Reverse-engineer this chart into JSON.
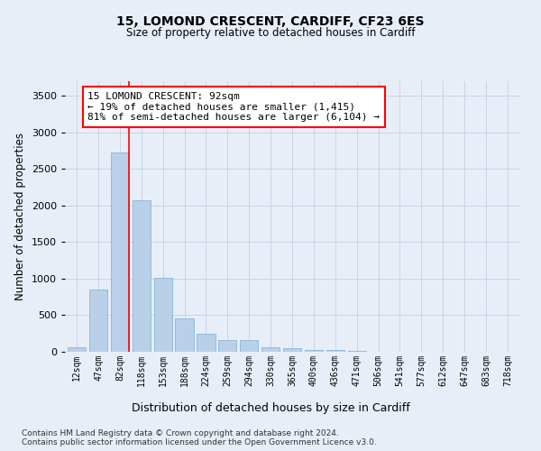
{
  "title1": "15, LOMOND CRESCENT, CARDIFF, CF23 6ES",
  "title2": "Size of property relative to detached houses in Cardiff",
  "xlabel": "Distribution of detached houses by size in Cardiff",
  "ylabel": "Number of detached properties",
  "categories": [
    "12sqm",
    "47sqm",
    "82sqm",
    "118sqm",
    "153sqm",
    "188sqm",
    "224sqm",
    "259sqm",
    "294sqm",
    "330sqm",
    "365sqm",
    "400sqm",
    "436sqm",
    "471sqm",
    "506sqm",
    "541sqm",
    "577sqm",
    "612sqm",
    "647sqm",
    "683sqm",
    "718sqm"
  ],
  "values": [
    60,
    850,
    2730,
    2070,
    1010,
    460,
    250,
    155,
    155,
    65,
    55,
    30,
    20,
    10,
    5,
    5,
    3,
    2,
    1,
    1,
    0
  ],
  "bar_color": "#b8d0e8",
  "bar_edge_color": "#7aafd4",
  "bar_edge_width": 0.5,
  "vline_index": 2,
  "vline_color": "red",
  "vline_linewidth": 1.2,
  "annotation_text": "15 LOMOND CRESCENT: 92sqm\n← 19% of detached houses are smaller (1,415)\n81% of semi-detached houses are larger (6,104) →",
  "annotation_box_color": "white",
  "annotation_box_edge_color": "red",
  "ylim": [
    0,
    3700
  ],
  "yticks": [
    0,
    500,
    1000,
    1500,
    2000,
    2500,
    3000,
    3500
  ],
  "grid_color": "#c8d4e4",
  "background_color": "#e8eef8",
  "footer1": "Contains HM Land Registry data © Crown copyright and database right 2024.",
  "footer2": "Contains public sector information licensed under the Open Government Licence v3.0."
}
